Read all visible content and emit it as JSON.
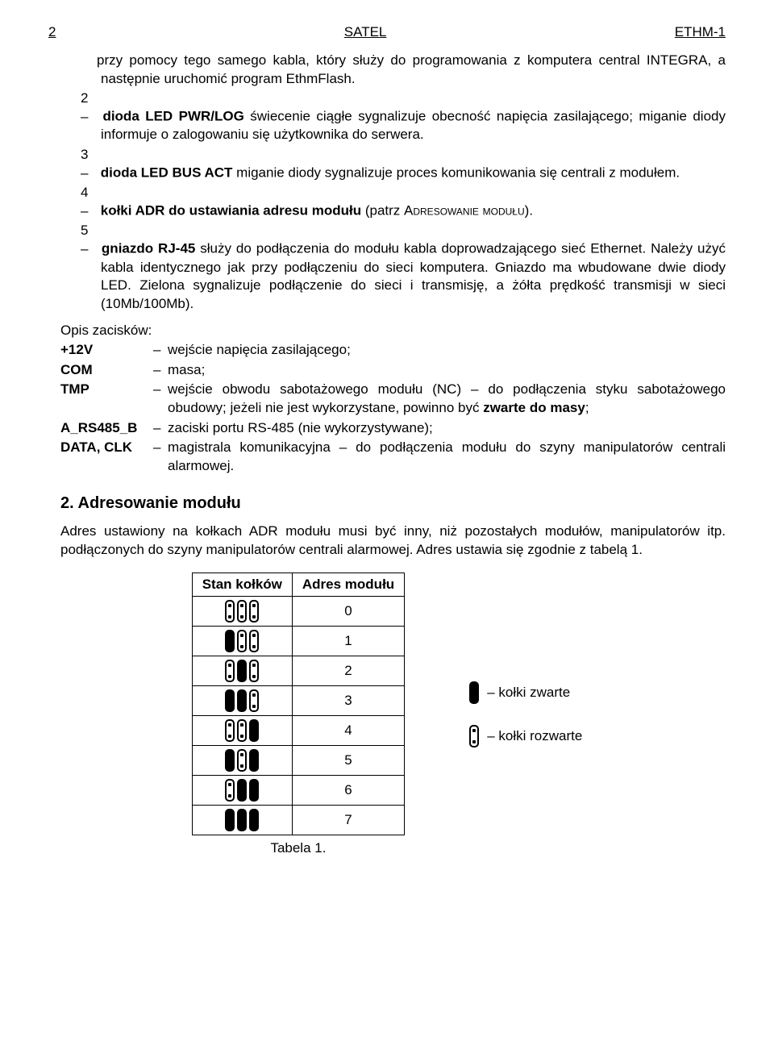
{
  "header": {
    "page": "2",
    "center": "SATEL",
    "right": "ETHM-1"
  },
  "items": [
    {
      "n": "",
      "html": "przy pomocy tego samego kabla, który służy do programowania z komputera central INTEGRA, a następnie uruchomić program EthmFlash."
    },
    {
      "n": "2",
      "html": "<b>dioda LED PWR/LOG</b> świecenie ciągłe sygnalizuje obecność napięcia zasilającego; miganie diody informuje o zalogowaniu się użytkownika do serwera."
    },
    {
      "n": "3",
      "html": "<b>dioda LED BUS ACT</b> miganie diody sygnalizuje proces komunikowania się centrali z modułem."
    },
    {
      "n": "4",
      "html": "<b>kołki ADR do ustawiania adresu modułu</b> (patrz <span class='sc'>Adresowanie modułu</span>)."
    },
    {
      "n": "5",
      "html": "<b>gniazdo RJ-45</b> służy do podłączenia do modułu kabla doprowadzającego sieć Ethernet. Należy użyć kabla identycznego jak przy podłączeniu do sieci komputera. Gniazdo ma wbudowane dwie diody LED. Zielona sygnalizuje podłączenie do sieci i transmisję, a żółta prędkość transmisji w sieci (10Mb/100Mb)."
    }
  ],
  "terms_title": "Opis zacisków:",
  "terms": [
    {
      "label": "+12V",
      "desc": "wejście napięcia zasilającego;"
    },
    {
      "label": "COM",
      "desc": "masa;"
    },
    {
      "label": "TMP",
      "desc": "wejście obwodu sabotażowego modułu (NC) – do podłączenia styku sabotażowego obudowy; jeżeli nie jest wykorzystane, powinno być <b>zwarte do masy</b>;"
    },
    {
      "label": "A_RS485_B",
      "desc": "zaciski portu RS-485 (nie wykorzystywane);"
    },
    {
      "label": "DATA, CLK",
      "desc": "magistrala komunikacyjna – do podłączenia modułu do szyny manipulatorów centrali alarmowej."
    }
  ],
  "section_heading": "2.  Adresowanie modułu",
  "para": "Adres ustawiony na kołkach ADR modułu musi być inny, niż pozostałych modułów, manipulatorów itp. podłączonych do szyny manipulatorów centrali alarmowej. Adres ustawia się zgodnie z tabelą 1.",
  "table": {
    "header": [
      "Stan kołków",
      "Adres modułu"
    ],
    "rows": [
      {
        "pins": [
          "open",
          "open",
          "open"
        ],
        "addr": "0"
      },
      {
        "pins": [
          "closed",
          "open",
          "open"
        ],
        "addr": "1"
      },
      {
        "pins": [
          "open",
          "closed",
          "open"
        ],
        "addr": "2"
      },
      {
        "pins": [
          "closed",
          "closed",
          "open"
        ],
        "addr": "3"
      },
      {
        "pins": [
          "open",
          "open",
          "closed"
        ],
        "addr": "4"
      },
      {
        "pins": [
          "closed",
          "open",
          "closed"
        ],
        "addr": "5"
      },
      {
        "pins": [
          "open",
          "closed",
          "closed"
        ],
        "addr": "6"
      },
      {
        "pins": [
          "closed",
          "closed",
          "closed"
        ],
        "addr": "7"
      }
    ],
    "caption": "Tabela 1."
  },
  "legend": {
    "closed": "– kołki zwarte",
    "open": "– kołki rozwarte"
  }
}
